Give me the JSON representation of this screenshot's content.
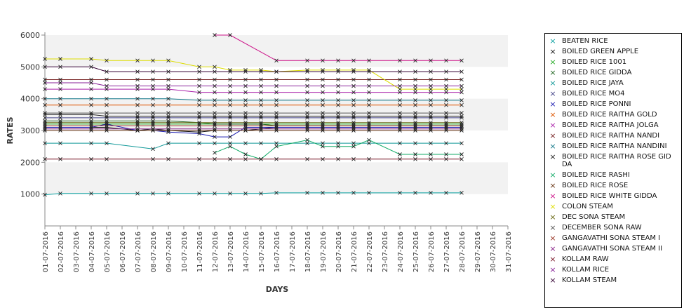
{
  "chart_data": {
    "type": "line",
    "title": "",
    "xlabel": "DAYS",
    "ylabel": "RATES",
    "ylim": [
      0,
      6000
    ],
    "y_ticks": [
      "1000",
      "2000",
      "3000",
      "4000",
      "5000",
      "6000"
    ],
    "grid": "alternating horizontal bands",
    "legend_position": "right",
    "x": [
      "01-07-2016",
      "02-07-2016",
      "03-07-2016",
      "04-07-2016",
      "05-07-2016",
      "06-07-2016",
      "07-07-2016",
      "08-07-2016",
      "09-07-2016",
      "10-07-2016",
      "11-07-2016",
      "12-07-2016",
      "13-07-2016",
      "14-07-2016",
      "15-07-2016",
      "16-07-2016",
      "17-07-2016",
      "18-07-2016",
      "19-07-2016",
      "20-07-2016",
      "21-07-2016",
      "22-07-2016",
      "23-07-2016",
      "24-07-2016",
      "25-07-2016",
      "26-07-2016",
      "27-07-2016",
      "28-07-2016",
      "29-07-2016",
      "30-07-2016",
      "31-07-2016"
    ],
    "series": [
      {
        "name": "BEATEN RICE",
        "color": "#0aa0a0",
        "values": [
          980,
          1020,
          null,
          1020,
          1020,
          null,
          1020,
          1020,
          1020,
          null,
          1020,
          1020,
          1020,
          1020,
          1020,
          1040,
          null,
          1040,
          1040,
          1040,
          1040,
          1040,
          null,
          1040,
          1040,
          1040,
          1040,
          1040,
          null,
          null,
          null
        ]
      },
      {
        "name": "BOILED GREEN APPLE",
        "color": "#111111",
        "values": [
          3100,
          3100,
          null,
          3100,
          3100,
          null,
          3000,
          3050,
          3000,
          null,
          2950,
          3000,
          3000,
          3000,
          3050,
          3100,
          null,
          3100,
          3100,
          3100,
          3100,
          3100,
          null,
          3100,
          3100,
          3100,
          3100,
          3100,
          null,
          null,
          null
        ]
      },
      {
        "name": "BOILED RICE 1001",
        "color": "#22aa22",
        "values": [
          3200,
          3200,
          null,
          3200,
          3200,
          null,
          3200,
          3200,
          3200,
          null,
          3200,
          3200,
          3200,
          3200,
          3200,
          3200,
          null,
          3200,
          3200,
          3200,
          3200,
          3200,
          null,
          3200,
          3200,
          3200,
          3200,
          3200,
          null,
          null,
          null
        ]
      },
      {
        "name": "BOILED RICE GIDDA",
        "color": "#226622",
        "values": [
          3300,
          3300,
          null,
          3300,
          3300,
          null,
          3300,
          3300,
          3300,
          null,
          3250,
          3200,
          3200,
          3200,
          3200,
          3150,
          null,
          3150,
          3150,
          3150,
          3150,
          3150,
          null,
          3150,
          3150,
          3150,
          3150,
          3150,
          null,
          null,
          null
        ]
      },
      {
        "name": "BOILED RICE JAYA",
        "color": "#119999",
        "values": [
          2600,
          2600,
          null,
          2600,
          2600,
          null,
          null,
          2420,
          2600,
          null,
          2600,
          2600,
          2600,
          2600,
          2600,
          2600,
          null,
          2600,
          2600,
          2600,
          2600,
          2600,
          null,
          2600,
          2600,
          2600,
          2600,
          2600,
          null,
          null,
          null
        ]
      },
      {
        "name": "BOILED RICE MO4",
        "color": "#444488",
        "values": [
          3400,
          3400,
          null,
          3400,
          3400,
          null,
          3400,
          3400,
          3400,
          null,
          3400,
          3400,
          3400,
          3400,
          3400,
          3400,
          null,
          3400,
          3400,
          3400,
          3400,
          3400,
          null,
          3400,
          3400,
          3400,
          3400,
          3400,
          null,
          null,
          null
        ]
      },
      {
        "name": "BOILED RICE PONNI",
        "color": "#1a1ab0",
        "values": [
          3100,
          3100,
          null,
          3100,
          3200,
          null,
          3000,
          3000,
          2950,
          null,
          2900,
          2800,
          2800,
          3100,
          3100,
          3100,
          null,
          3100,
          3100,
          3100,
          3100,
          3100,
          null,
          3100,
          3100,
          3100,
          3100,
          3100,
          null,
          null,
          null
        ]
      },
      {
        "name": "BOILED RICE RAITHA GOLD",
        "color": "#dd5500",
        "values": [
          3800,
          3800,
          null,
          3800,
          3800,
          null,
          3800,
          3800,
          3800,
          null,
          3800,
          3800,
          3800,
          3800,
          3800,
          3800,
          null,
          3800,
          3800,
          3800,
          3800,
          3800,
          null,
          3800,
          3800,
          3800,
          3800,
          3800,
          null,
          null,
          null
        ]
      },
      {
        "name": "BOILED RICE RAITHA JOLGA",
        "color": "#aa22aa",
        "values": [
          4300,
          4300,
          null,
          4300,
          4300,
          null,
          4300,
          4300,
          4300,
          null,
          4200,
          4200,
          4200,
          4200,
          4200,
          4200,
          null,
          4200,
          4200,
          4200,
          4200,
          4200,
          null,
          4200,
          4200,
          4200,
          4200,
          4200,
          null,
          null,
          null
        ]
      },
      {
        "name": "BOILED RICE RAITHA NANDI",
        "color": "#772222",
        "values": [
          4600,
          4600,
          null,
          4600,
          4600,
          null,
          4600,
          4600,
          4600,
          null,
          4600,
          4600,
          4600,
          4600,
          4600,
          4600,
          null,
          4600,
          4600,
          4600,
          4600,
          4600,
          null,
          4600,
          4600,
          4600,
          4600,
          4600,
          null,
          null,
          null
        ]
      },
      {
        "name": "BOILED RICE RAITHA NANDINI",
        "color": "#117788",
        "values": [
          4000,
          4000,
          null,
          4000,
          4000,
          null,
          4000,
          4000,
          4000,
          null,
          3950,
          3950,
          3950,
          3950,
          3950,
          3950,
          null,
          3950,
          3950,
          3950,
          3950,
          3950,
          null,
          3950,
          3950,
          3950,
          3950,
          3950,
          null,
          null,
          null
        ]
      },
      {
        "name": "BOILED RICE RAITHA ROSE GIDDA",
        "color": "#222222",
        "values": [
          3500,
          3500,
          null,
          3500,
          3450,
          null,
          3450,
          3450,
          3450,
          null,
          3450,
          3450,
          3450,
          3450,
          3450,
          3450,
          null,
          3450,
          3450,
          3450,
          3450,
          3450,
          null,
          3450,
          3450,
          3450,
          3450,
          3450,
          null,
          null,
          null
        ]
      },
      {
        "name": "BOILED RICE RASHI",
        "color": "#11aa66",
        "values": [
          null,
          null,
          null,
          null,
          null,
          null,
          null,
          null,
          null,
          null,
          null,
          2300,
          2500,
          2250,
          2100,
          2500,
          null,
          2700,
          2500,
          2500,
          2500,
          2700,
          null,
          2250,
          2250,
          2250,
          2250,
          2250,
          null,
          null,
          null
        ]
      },
      {
        "name": "BOILED RICE ROSE",
        "color": "#663311",
        "values": [
          3000,
          3000,
          null,
          3000,
          3000,
          null,
          3000,
          3000,
          3000,
          null,
          3000,
          3000,
          3000,
          3000,
          3000,
          3000,
          null,
          3000,
          3000,
          3000,
          3000,
          3000,
          null,
          3000,
          3000,
          3000,
          3000,
          3000,
          null,
          null,
          null
        ]
      },
      {
        "name": "BOILED RICE WHITE GIDDA",
        "color": "#cc1188",
        "values": [
          null,
          null,
          null,
          null,
          null,
          null,
          null,
          null,
          null,
          null,
          null,
          6000,
          6000,
          null,
          null,
          5200,
          null,
          5200,
          5200,
          5200,
          5200,
          5200,
          null,
          5200,
          5200,
          5200,
          5200,
          5200,
          null,
          null,
          null
        ]
      },
      {
        "name": "COLON STEAM",
        "color": "#dddd00",
        "values": [
          5250,
          5250,
          null,
          5250,
          5200,
          null,
          5200,
          5200,
          5200,
          null,
          5000,
          5000,
          4900,
          4900,
          4900,
          4850,
          null,
          4900,
          4900,
          4900,
          4900,
          4900,
          null,
          4300,
          4300,
          4300,
          4300,
          4300,
          null,
          null,
          null
        ]
      },
      {
        "name": "DEC SONA STEAM",
        "color": "#666611",
        "values": [
          3250,
          3250,
          null,
          3250,
          3250,
          null,
          3250,
          3250,
          3250,
          null,
          3250,
          3250,
          3250,
          3250,
          3250,
          3250,
          null,
          3250,
          3250,
          3250,
          3250,
          3250,
          null,
          3250,
          3250,
          3250,
          3250,
          3250,
          null,
          null,
          null
        ]
      },
      {
        "name": "DECEMBER SONA RAW",
        "color": "#555555",
        "values": [
          3550,
          3550,
          null,
          3550,
          3550,
          null,
          3550,
          3550,
          3550,
          null,
          3550,
          3550,
          3550,
          3550,
          3550,
          3550,
          null,
          3550,
          3550,
          3550,
          3550,
          3550,
          null,
          3550,
          3550,
          3550,
          3550,
          3550,
          null,
          null,
          null
        ]
      },
      {
        "name": "GANGAVATHI SONA STEAM I",
        "color": "#993322",
        "values": [
          3150,
          3150,
          null,
          3150,
          3150,
          null,
          3150,
          3150,
          3150,
          null,
          3150,
          3150,
          3150,
          3150,
          3150,
          3150,
          null,
          3150,
          3150,
          3150,
          3150,
          3150,
          null,
          3150,
          3150,
          3150,
          3150,
          3150,
          null,
          null,
          null
        ]
      },
      {
        "name": "GANGAVATHI SONA STEAM II",
        "color": "#882288",
        "values": [
          3050,
          3050,
          null,
          3050,
          3050,
          null,
          3050,
          3050,
          3050,
          null,
          3050,
          3050,
          3050,
          3050,
          3050,
          3050,
          null,
          3050,
          3050,
          3050,
          3050,
          3050,
          null,
          3050,
          3050,
          3050,
          3050,
          3050,
          null,
          null,
          null
        ]
      },
      {
        "name": "KOLLAM RAW",
        "color": "#771122",
        "values": [
          2100,
          2100,
          null,
          2100,
          2100,
          null,
          null,
          2100,
          2100,
          null,
          2100,
          2100,
          2100,
          2100,
          2100,
          2100,
          null,
          2100,
          2100,
          2100,
          2100,
          2100,
          null,
          2100,
          2100,
          2100,
          2100,
          2100,
          null,
          null,
          null
        ]
      },
      {
        "name": "KOLLAM RICE",
        "color": "#882299",
        "values": [
          4500,
          4500,
          null,
          4500,
          4400,
          null,
          4400,
          4400,
          4400,
          null,
          4400,
          4400,
          4400,
          4400,
          4400,
          4400,
          null,
          4400,
          4400,
          4400,
          4400,
          4400,
          null,
          4400,
          4400,
          4400,
          4400,
          4400,
          null,
          null,
          null
        ]
      },
      {
        "name": "KOLLAM STEAM",
        "color": "#330033",
        "values": [
          5000,
          5000,
          null,
          5000,
          4850,
          null,
          4850,
          4850,
          4850,
          null,
          4850,
          4850,
          4850,
          4850,
          4850,
          4850,
          null,
          4850,
          4850,
          4850,
          4850,
          4850,
          null,
          4850,
          4850,
          4850,
          4850,
          4850,
          null,
          null,
          null
        ]
      }
    ]
  }
}
